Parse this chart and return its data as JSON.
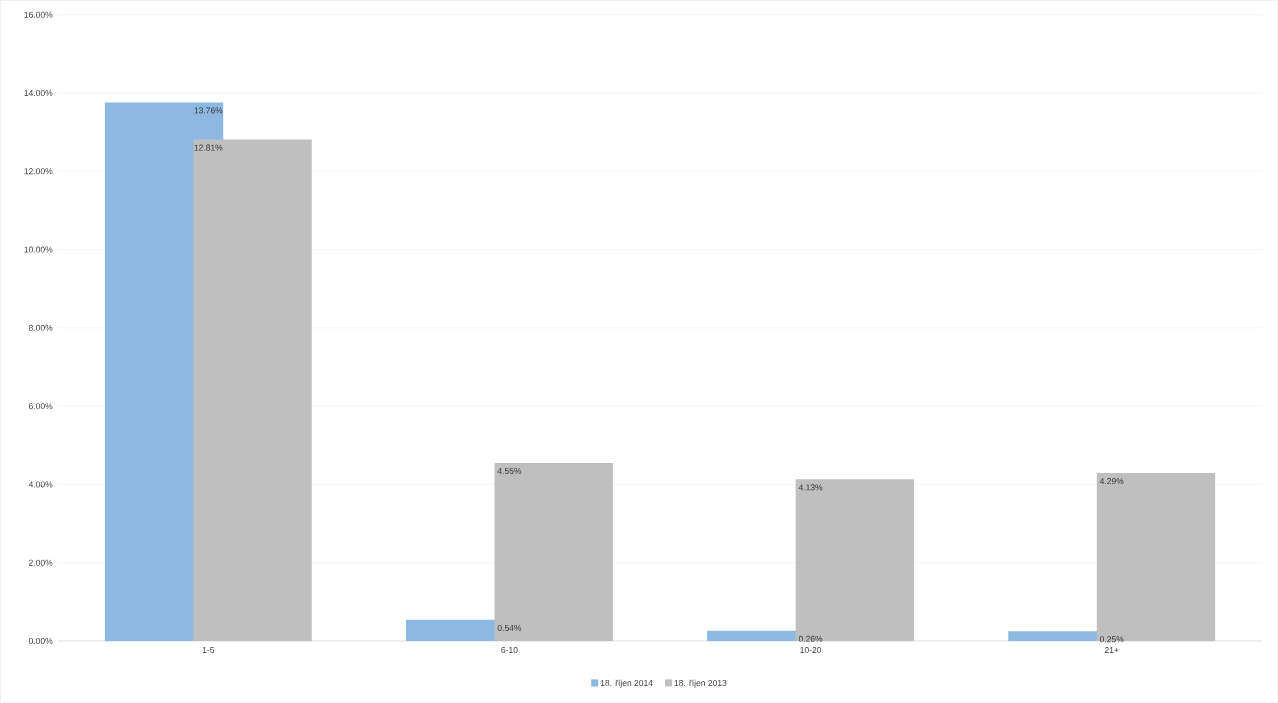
{
  "chart_data": {
    "type": "bar",
    "categories": [
      "1-5",
      "6-10",
      "10-20",
      "21+"
    ],
    "series": [
      {
        "name": "18. říjen 2014",
        "color": "#8db8e2",
        "values": [
          13.76,
          0.54,
          0.26,
          0.25
        ],
        "value_labels": [
          "13.76%",
          "0.54%",
          "0.26%",
          "0.25%"
        ]
      },
      {
        "name": "18. říjen 2013",
        "color": "#bfbfbf",
        "values": [
          12.81,
          4.55,
          4.13,
          4.29
        ],
        "value_labels": [
          "12.81%",
          "4.55%",
          "4.13%",
          "4.29%"
        ]
      }
    ],
    "ylim": [
      0,
      16
    ],
    "yticks": [
      {
        "value": 0,
        "label": "0.00%"
      },
      {
        "value": 2,
        "label": "2.00%"
      },
      {
        "value": 4,
        "label": "4.00%"
      },
      {
        "value": 6,
        "label": "6.00%"
      },
      {
        "value": 8,
        "label": "8.00%"
      },
      {
        "value": 10,
        "label": "10.00%"
      },
      {
        "value": 12,
        "label": "12.00%"
      },
      {
        "value": 14,
        "label": "14.00%"
      },
      {
        "value": 16,
        "label": "16.00%"
      }
    ],
    "grid": "y",
    "legend": "bottom"
  }
}
